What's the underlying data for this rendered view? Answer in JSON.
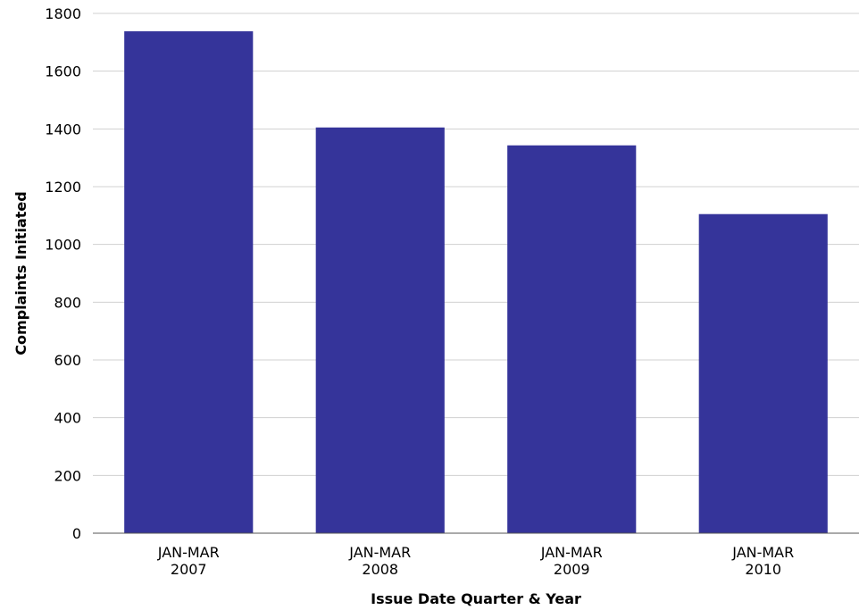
{
  "chart_data": {
    "type": "bar",
    "categories": [
      [
        "JAN-MAR",
        "2007"
      ],
      [
        "JAN-MAR",
        "2008"
      ],
      [
        "JAN-MAR",
        "2009"
      ],
      [
        "JAN-MAR",
        "2010"
      ]
    ],
    "values": [
      1738,
      1405,
      1343,
      1105
    ],
    "xlabel": "Issue Date Quarter & Year",
    "ylabel": "Complaints Initiated",
    "ylim": [
      0,
      1800
    ],
    "yticks": [
      0,
      200,
      400,
      600,
      800,
      1000,
      1200,
      1400,
      1600,
      1800
    ],
    "grid": true,
    "legend": "none",
    "bar_color": "#35349a"
  }
}
